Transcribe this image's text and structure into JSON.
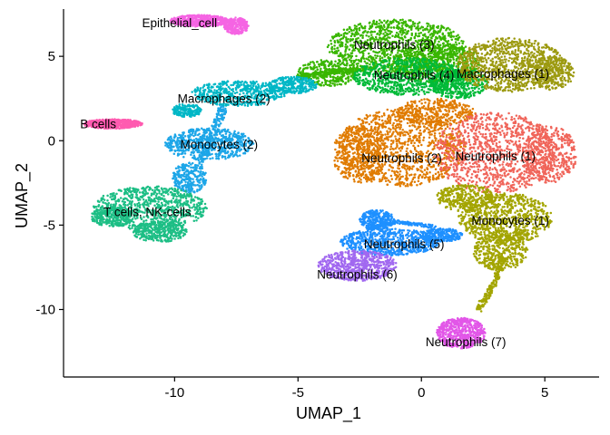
{
  "chart_data": {
    "type": "scatter",
    "xlabel": "UMAP_1",
    "ylabel": "UMAP_2",
    "xlim": [
      -14.5,
      7.2
    ],
    "ylim": [
      -14,
      7.8
    ],
    "x_ticks": [
      -10,
      -5,
      0,
      5
    ],
    "y_ticks": [
      -10,
      -5,
      0,
      5
    ],
    "x_tick_labels": [
      "-10",
      "-5",
      "0",
      "5"
    ],
    "y_tick_labels": [
      "-10",
      "-5",
      "0",
      "5"
    ],
    "grid": false,
    "legend": "none",
    "clusters": [
      {
        "label": "Epithelial_cell",
        "color": "#F564E3",
        "label_at": [
          -9.8,
          7.0
        ],
        "blobs": [
          [
            -9.0,
            7.1,
            1.2,
            0.35,
            1.0
          ],
          [
            -7.5,
            6.8,
            0.5,
            0.5,
            0.5
          ]
        ]
      },
      {
        "label": "Neutrophils (3)",
        "color": "#39B600",
        "label_at": [
          -1.1,
          5.7
        ],
        "blobs": [
          [
            -1.0,
            5.6,
            2.8,
            1.6,
            2.0
          ],
          [
            -3.8,
            4.0,
            1.2,
            0.8,
            0.6
          ],
          [
            0.6,
            4.6,
            1.8,
            1.2,
            1.0
          ]
        ]
      },
      {
        "label": "Neutrophils (4)",
        "color": "#00BA38",
        "label_at": [
          -0.3,
          3.9
        ],
        "blobs": [
          [
            -0.5,
            3.8,
            2.3,
            1.1,
            1.4
          ],
          [
            1.5,
            3.4,
            1.2,
            0.9,
            0.7
          ]
        ]
      },
      {
        "label": "Macrophages (1)",
        "color": "#9C9A10",
        "label_at": [
          3.3,
          4.0
        ],
        "blobs": [
          [
            3.6,
            4.5,
            2.2,
            1.6,
            1.8
          ],
          [
            5.3,
            4.0,
            0.9,
            1.0,
            0.5
          ]
        ]
      },
      {
        "label": "Macrophages (2)",
        "color": "#00B7C6",
        "label_at": [
          -8.0,
          2.5
        ],
        "blobs": [
          [
            -7.4,
            2.8,
            1.9,
            0.75,
            1.0
          ],
          [
            -5.2,
            3.3,
            1.0,
            0.5,
            0.5
          ],
          [
            -9.5,
            1.8,
            0.6,
            0.4,
            0.3
          ]
        ]
      },
      {
        "label": "B cells",
        "color": "#FF5BB0",
        "label_at": [
          -13.1,
          1.0
        ],
        "blobs": [
          [
            -12.5,
            1.0,
            1.2,
            0.28,
            1.0
          ]
        ]
      },
      {
        "label": "Monocytes (2)",
        "color": "#1DA6E8",
        "label_at": [
          -8.2,
          -0.2
        ],
        "blobs": [
          [
            -8.6,
            -0.2,
            1.8,
            0.95,
            1.2
          ],
          [
            -9.4,
            -2.2,
            0.7,
            0.9,
            0.5
          ]
        ]
      },
      {
        "label": "Neutrophils (2)",
        "color": "#E07B00",
        "label_at": [
          -0.8,
          -1.0
        ],
        "blobs": [
          [
            -0.8,
            -0.4,
            2.6,
            2.3,
            2.0
          ],
          [
            -2.5,
            -0.8,
            1.1,
            1.7,
            0.8
          ],
          [
            0.6,
            1.7,
            1.6,
            0.8,
            0.7
          ]
        ]
      },
      {
        "label": "Neutrophils (1)",
        "color": "#F0655A",
        "label_at": [
          3.0,
          -0.9
        ],
        "blobs": [
          [
            3.0,
            -0.7,
            2.5,
            2.4,
            2.0
          ],
          [
            5.2,
            -0.8,
            1.1,
            1.7,
            0.8
          ]
        ]
      },
      {
        "label": "Monocytes (1)",
        "color": "#A3A500",
        "label_at": [
          3.6,
          -4.7
        ],
        "blobs": [
          [
            3.4,
            -4.6,
            1.9,
            1.5,
            1.5
          ],
          [
            3.2,
            -6.5,
            1.1,
            1.2,
            0.8
          ],
          [
            1.8,
            -3.4,
            1.2,
            0.8,
            0.6
          ]
        ]
      },
      {
        "label": "T cells, NK-cells",
        "color": "#1DBE85",
        "label_at": [
          -11.1,
          -4.2
        ],
        "blobs": [
          [
            -11.0,
            -4.0,
            2.3,
            1.3,
            1.6
          ],
          [
            -12.5,
            -4.5,
            0.9,
            0.6,
            0.5
          ],
          [
            -10.6,
            -5.4,
            1.1,
            0.6,
            0.6
          ]
        ]
      },
      {
        "label": "Neutrophils (5)",
        "color": "#1E90FF",
        "label_at": [
          -0.7,
          -6.1
        ],
        "blobs": [
          [
            -1.3,
            -6.0,
            2.0,
            0.8,
            1.2
          ],
          [
            -1.8,
            -4.7,
            0.7,
            0.6,
            0.5
          ],
          [
            0.8,
            -5.6,
            0.9,
            0.4,
            0.5
          ]
        ]
      },
      {
        "label": "Neutrophils (6)",
        "color": "#A168F0",
        "label_at": [
          -2.6,
          -7.9
        ],
        "blobs": [
          [
            -2.6,
            -7.4,
            1.6,
            0.9,
            1.2
          ]
        ]
      },
      {
        "label": "Neutrophils (7)",
        "color": "#E256E8",
        "label_at": [
          1.8,
          -11.9
        ],
        "blobs": [
          [
            1.6,
            -11.4,
            1.0,
            0.9,
            1.0
          ]
        ]
      }
    ],
    "bridges": [
      {
        "color": "#1DA6E8",
        "points": [
          [
            -9.0,
            -1.5
          ],
          [
            -8.4,
            0.6
          ],
          [
            -8.0,
            2.0
          ]
        ],
        "width": 0.35
      },
      {
        "color": "#39B600",
        "points": [
          [
            -5.0,
            3.8
          ],
          [
            -3.5,
            4.1
          ],
          [
            -2.2,
            4.3
          ]
        ],
        "width": 0.25
      },
      {
        "color": "#A3A500",
        "points": [
          [
            3.3,
            -7.0
          ],
          [
            2.9,
            -8.6
          ],
          [
            2.3,
            -10.0
          ]
        ],
        "width": 0.25
      },
      {
        "color": "#1E90FF",
        "points": [
          [
            -2.2,
            -5.2
          ],
          [
            -1.0,
            -4.8
          ],
          [
            0.5,
            -5.1
          ]
        ],
        "width": 0.2
      }
    ]
  }
}
